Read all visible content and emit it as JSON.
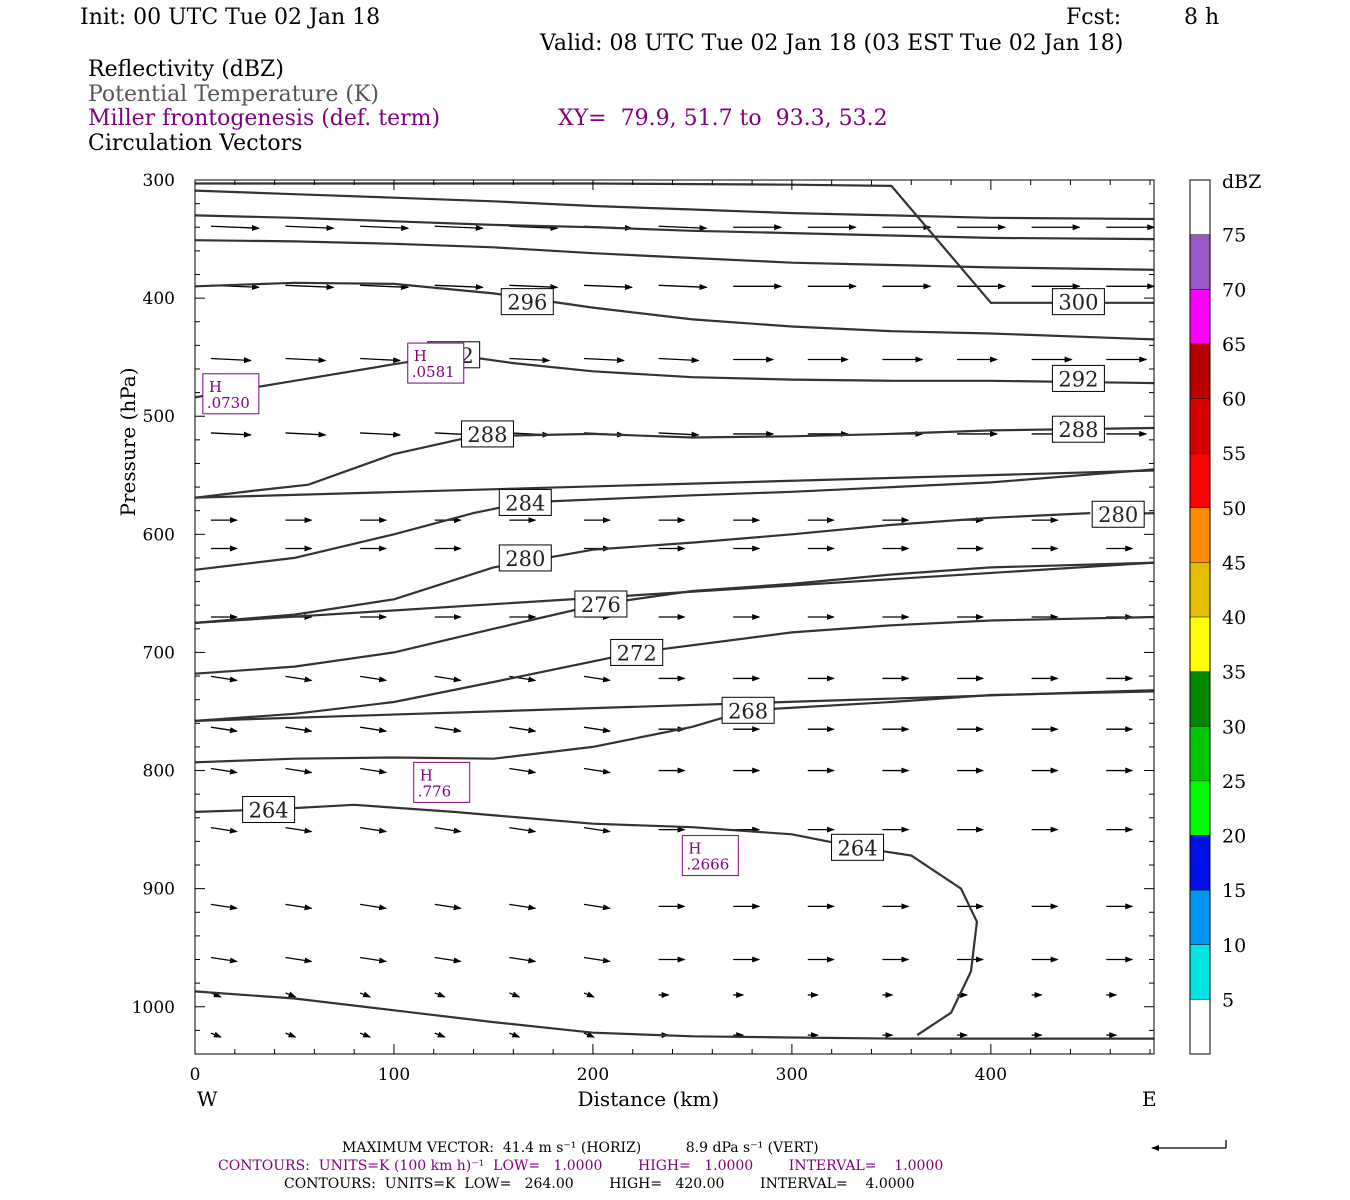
{
  "header": {
    "init": "Init: 00 UTC Tue 02 Jan 18",
    "fcst_label": "Fcst:",
    "fcst_value": "8 h",
    "valid": "Valid: 08 UTC Tue 02 Jan 18 (03 EST Tue 02 Jan 18)"
  },
  "legend": {
    "line1": "Reflectivity (dBZ)",
    "line2": "Potential Temperature (K)",
    "line3": "Miller frontogenesis (def. term)",
    "line4": "Circulation Vectors",
    "xy": "XY=  79.9, 51.7 to  93.3, 53.2"
  },
  "footer": {
    "max_vector": "MAXIMUM VECTOR:  41.4 m s⁻¹ (HORIZ)          8.9 dPa s⁻¹ (VERT)",
    "contours1": "CONTOURS:  UNITS=K (100 km h)⁻¹  LOW=   1.0000        HIGH=   1.0000        INTERVAL=    1.0000",
    "contours2": "CONTOURS:  UNITS=K  LOW=   264.00        HIGH=   420.00        INTERVAL=    4.0000"
  },
  "colors": {
    "purple": "#800080",
    "theta": "#333333"
  },
  "chart_data": {
    "type": "contour",
    "xlabel": "Distance (km)",
    "ylabel": "Pressure (hPa)",
    "xlim": [
      0,
      482
    ],
    "ylim": [
      1040,
      300
    ],
    "x_ticks": [
      0,
      100,
      200,
      300,
      400
    ],
    "y_ticks": [
      300,
      400,
      500,
      600,
      700,
      800,
      900,
      1000
    ],
    "west_label": "W",
    "east_label": "E",
    "colorbar": {
      "title": "dBZ",
      "levels": [
        5,
        10,
        15,
        20,
        25,
        30,
        35,
        40,
        45,
        50,
        55,
        60,
        65,
        70,
        75
      ],
      "colors": [
        "#ffffff",
        "#00e4e4",
        "#0098f0",
        "#0010e8",
        "#00fc00",
        "#00c800",
        "#008800",
        "#ffff00",
        "#e4bc00",
        "#ff8c00",
        "#ff0000",
        "#d80000",
        "#b80000",
        "#ff00ff",
        "#9858c8",
        "#ffffff"
      ]
    },
    "theta_contours": [
      {
        "label": "",
        "points": [
          [
            0,
            309
          ],
          [
            50,
            312
          ],
          [
            100,
            315
          ],
          [
            150,
            318
          ],
          [
            200,
            322
          ],
          [
            250,
            325
          ],
          [
            300,
            328
          ],
          [
            350,
            330
          ],
          [
            400,
            332
          ],
          [
            482,
            333
          ]
        ]
      },
      {
        "label": "",
        "points": [
          [
            0,
            330
          ],
          [
            50,
            332
          ],
          [
            100,
            335
          ],
          [
            150,
            338
          ],
          [
            200,
            340
          ],
          [
            250,
            343
          ],
          [
            300,
            345
          ],
          [
            350,
            347
          ],
          [
            400,
            349
          ],
          [
            482,
            350
          ]
        ]
      },
      {
        "label": "",
        "points": [
          [
            0,
            351
          ],
          [
            50,
            352
          ],
          [
            100,
            354
          ],
          [
            150,
            357
          ],
          [
            200,
            362
          ],
          [
            250,
            366
          ],
          [
            300,
            370
          ],
          [
            350,
            372
          ],
          [
            400,
            374
          ],
          [
            482,
            376
          ]
        ]
      },
      {
        "label": "296",
        "label_at": [
          167,
          403
        ],
        "points": [
          [
            0,
            390
          ],
          [
            50,
            387
          ],
          [
            100,
            388
          ],
          [
            150,
            396
          ],
          [
            200,
            408
          ],
          [
            250,
            418
          ],
          [
            300,
            424
          ],
          [
            350,
            428
          ],
          [
            400,
            430
          ],
          [
            482,
            435
          ]
        ]
      },
      {
        "label": "300",
        "label_at": [
          444,
          403
        ],
        "points": [
          [
            0,
            303
          ],
          [
            100,
            303
          ],
          [
            200,
            303
          ],
          [
            300,
            304
          ],
          [
            350,
            305
          ],
          [
            400,
            404
          ],
          [
            482,
            404
          ]
        ]
      },
      {
        "label": "292",
        "label_at": [
          130,
          448
        ],
        "points": [
          [
            0,
            484
          ],
          [
            50,
            470
          ],
          [
            100,
            456
          ],
          [
            130,
            448
          ],
          [
            160,
            455
          ],
          [
            200,
            462
          ],
          [
            250,
            467
          ],
          [
            300,
            469
          ],
          [
            350,
            470
          ],
          [
            400,
            470
          ],
          [
            482,
            472
          ]
        ]
      },
      {
        "label": "292",
        "label_at": [
          444,
          468
        ],
        "points": [
          [
            444,
            468
          ]
        ]
      },
      {
        "label": "288",
        "label_at": [
          147,
          515
        ],
        "points": [
          [
            0,
            569
          ],
          [
            30,
            563
          ],
          [
            57,
            558
          ],
          [
            100,
            532
          ],
          [
            140,
            517
          ],
          [
            200,
            515
          ],
          [
            250,
            518
          ],
          [
            300,
            517
          ],
          [
            350,
            515
          ],
          [
            400,
            512
          ],
          [
            482,
            510
          ]
        ]
      },
      {
        "label": "288",
        "label_at": [
          444,
          511
        ],
        "points": [
          [
            444,
            511
          ]
        ]
      },
      {
        "label": "",
        "points": [
          [
            0,
            569
          ],
          [
            482,
            546
          ]
        ]
      },
      {
        "label": "284",
        "label_at": [
          166,
          573
        ],
        "points": [
          [
            0,
            630
          ],
          [
            50,
            620
          ],
          [
            100,
            600
          ],
          [
            140,
            582
          ],
          [
            166,
            573
          ],
          [
            250,
            567
          ],
          [
            300,
            564
          ],
          [
            350,
            560
          ],
          [
            400,
            556
          ],
          [
            482,
            545
          ]
        ]
      },
      {
        "label": "280",
        "label_at": [
          464,
          583
        ],
        "points": [
          [
            464,
            583
          ],
          [
            482,
            582
          ]
        ]
      },
      {
        "label": "280",
        "label_at": [
          166,
          620
        ],
        "points": [
          [
            0,
            675
          ],
          [
            50,
            668
          ],
          [
            100,
            655
          ],
          [
            150,
            628
          ],
          [
            200,
            613
          ],
          [
            250,
            607
          ],
          [
            300,
            600
          ],
          [
            350,
            592
          ],
          [
            400,
            586
          ],
          [
            450,
            582
          ]
        ]
      },
      {
        "label": "",
        "points": [
          [
            0,
            675
          ],
          [
            482,
            624
          ]
        ]
      },
      {
        "label": "276",
        "label_at": [
          204,
          659
        ],
        "points": [
          [
            0,
            718
          ],
          [
            50,
            712
          ],
          [
            100,
            700
          ],
          [
            150,
            680
          ],
          [
            204,
            659
          ],
          [
            250,
            648
          ],
          [
            300,
            642
          ],
          [
            350,
            634
          ],
          [
            400,
            628
          ],
          [
            482,
            624
          ]
        ]
      },
      {
        "label": "272",
        "label_at": [
          222,
          700
        ],
        "points": [
          [
            0,
            758
          ],
          [
            50,
            752
          ],
          [
            100,
            742
          ],
          [
            150,
            725
          ],
          [
            222,
            700
          ],
          [
            300,
            683
          ],
          [
            350,
            677
          ],
          [
            400,
            673
          ],
          [
            482,
            670
          ]
        ]
      },
      {
        "label": "",
        "points": [
          [
            0,
            758
          ],
          [
            482,
            732
          ]
        ]
      },
      {
        "label": "268",
        "label_at": [
          278,
          749
        ],
        "points": [
          [
            0,
            793
          ],
          [
            50,
            790
          ],
          [
            100,
            789
          ],
          [
            150,
            790
          ],
          [
            200,
            780
          ],
          [
            250,
            763
          ],
          [
            278,
            749
          ],
          [
            350,
            742
          ],
          [
            400,
            736
          ],
          [
            482,
            733
          ]
        ]
      },
      {
        "label": "264",
        "label_at": [
          37,
          833
        ],
        "points": [
          [
            0,
            835
          ],
          [
            37,
            833
          ],
          [
            80,
            829
          ],
          [
            130,
            835
          ],
          [
            200,
            845
          ],
          [
            250,
            848
          ],
          [
            300,
            854
          ],
          [
            333,
            865
          ],
          [
            360,
            872
          ],
          [
            385,
            900
          ],
          [
            393,
            928
          ],
          [
            390,
            970
          ],
          [
            380,
            1005
          ],
          [
            363,
            1024
          ]
        ]
      },
      {
        "label": "264",
        "label_at": [
          333,
          865
        ],
        "points": [
          [
            333,
            865
          ]
        ]
      },
      {
        "label": "",
        "points": [
          [
            0,
            987
          ],
          [
            50,
            993
          ],
          [
            100,
            1003
          ],
          [
            150,
            1013
          ],
          [
            200,
            1022
          ],
          [
            250,
            1025
          ],
          [
            300,
            1026
          ],
          [
            350,
            1027
          ],
          [
            400,
            1027
          ],
          [
            482,
            1027
          ]
        ]
      }
    ],
    "frontogenesis_highs": [
      {
        "label": "H",
        "value": ".0730",
        "x": 17,
        "p": 481
      },
      {
        "label": "H",
        "value": ".0581",
        "x": 120,
        "p": 455
      },
      {
        "label": "H",
        "value": ".776",
        "x": 123,
        "p": 810
      },
      {
        "label": "H",
        "value": ".2666",
        "x": 258,
        "p": 872
      }
    ],
    "max_vector_horiz": "41.4 m s⁻¹",
    "max_vector_vert": "8.9 dPa s⁻¹"
  }
}
